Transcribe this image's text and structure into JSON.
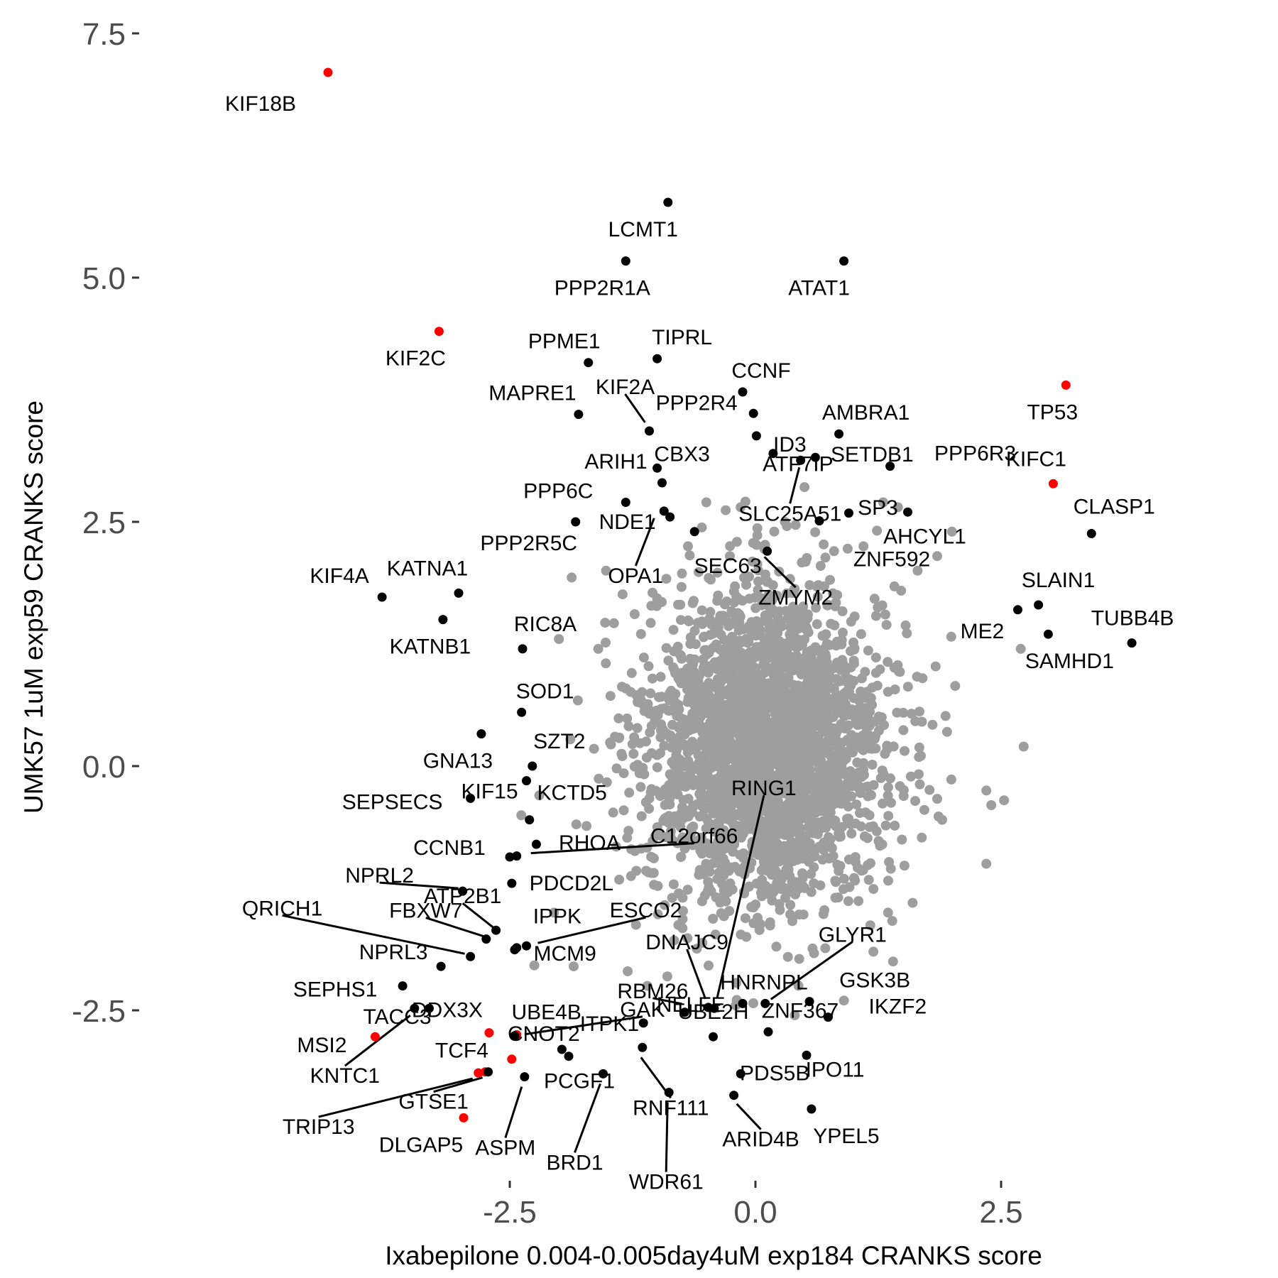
{
  "chart_data": {
    "type": "scatter",
    "xlabel": "Ixabepilone 0.004-0.005day4uM exp184 CRANKS score",
    "ylabel": "UMK57 1uM exp59 CRANKS score",
    "xlim": [
      -4.6,
      4.2
    ],
    "ylim": [
      -4.15,
      7.85
    ],
    "x_ticks": [
      -2.5,
      0.0,
      2.5
    ],
    "x_tick_labels": [
      "-2.5",
      "0.0",
      "2.5"
    ],
    "y_ticks": [
      -2.5,
      0.0,
      2.5,
      5.0,
      7.5
    ],
    "y_tick_labels": [
      "-2.5",
      "0.0",
      "2.5",
      "5.0",
      "7.5"
    ],
    "grid": false,
    "colors": {
      "background": "#9e9e9e",
      "highlight": "#000000",
      "special": "#ff0000"
    },
    "background_cloud": {
      "color": "#9e9e9e",
      "center": [
        0.1,
        0.2
      ],
      "approx_sd": [
        0.6,
        0.8
      ],
      "outliers": [
        [
          -1.52,
          2.0
        ],
        [
          -1.87,
          1.93
        ],
        [
          -2.0,
          1.3
        ],
        [
          -1.6,
          1.2
        ],
        [
          -1.3,
          -2.1
        ],
        [
          1.3,
          2.7
        ],
        [
          1.45,
          2.65
        ],
        [
          2.0,
          2.4
        ],
        [
          1.85,
          2.15
        ],
        [
          1.65,
          2.0
        ],
        [
          2.7,
          1.2
        ],
        [
          2.73,
          0.2
        ],
        [
          2.53,
          -0.35
        ],
        [
          2.35,
          -0.25
        ],
        [
          2.4,
          -0.4
        ],
        [
          2.35,
          -1.0
        ],
        [
          1.6,
          -1.4
        ],
        [
          1.35,
          -1.5
        ],
        [
          1.2,
          -1.9
        ],
        [
          -0.5,
          2.7
        ],
        [
          -0.15,
          2.65
        ],
        [
          0.3,
          2.5
        ],
        [
          0.8,
          2.2
        ],
        [
          1.1,
          2.25
        ],
        [
          -2.2,
          -0.3
        ],
        [
          -2.05,
          -1.5
        ],
        [
          -1.85,
          -2.05
        ],
        [
          -1.1,
          -2.25
        ],
        [
          -0.2,
          -2.45
        ],
        [
          0.4,
          -2.55
        ],
        [
          0.9,
          -2.4
        ],
        [
          1.4,
          -2.0
        ],
        [
          1.9,
          -0.55
        ],
        [
          1.95,
          0.35
        ],
        [
          1.7,
          0.9
        ]
      ]
    },
    "genes": [
      {
        "name": "KIF18B",
        "x": -4.35,
        "y": 7.1,
        "color": "red"
      },
      {
        "name": "LCMT1",
        "x": -0.89,
        "y": 5.77,
        "color": "black"
      },
      {
        "name": "PPP2R1A",
        "x": -1.32,
        "y": 5.17,
        "color": "black"
      },
      {
        "name": "ATAT1",
        "x": 0.9,
        "y": 5.17,
        "color": "black"
      },
      {
        "name": "KIF2C",
        "x": -3.22,
        "y": 4.45,
        "color": "red"
      },
      {
        "name": "TIPRL",
        "x": -1.0,
        "y": 4.17,
        "color": "black"
      },
      {
        "name": "PPME1",
        "x": -1.7,
        "y": 4.13,
        "color": "black"
      },
      {
        "name": "CCNF",
        "x": -0.13,
        "y": 3.83,
        "color": "black"
      },
      {
        "name": "TP53",
        "x": 3.16,
        "y": 3.9,
        "color": "red"
      },
      {
        "name": "MAPRE1",
        "x": -1.8,
        "y": 3.6,
        "color": "black"
      },
      {
        "name": "PPP2R4",
        "x": -0.02,
        "y": 3.61,
        "color": "black"
      },
      {
        "name": "KIF2A",
        "x": -1.08,
        "y": 3.43,
        "color": "black"
      },
      {
        "name": "ID3",
        "x": 0.01,
        "y": 3.38,
        "color": "black"
      },
      {
        "name": "AMBRA1",
        "x": 0.85,
        "y": 3.4,
        "color": "black"
      },
      {
        "name": "CBX3",
        "x": -1.0,
        "y": 3.05,
        "color": "black"
      },
      {
        "name": "ATF7IP",
        "x": 0.18,
        "y": 3.2,
        "color": "black"
      },
      {
        "name": "SETDB1",
        "x": 0.61,
        "y": 3.16,
        "color": "black"
      },
      {
        "name": "PPP6R3",
        "x": 1.37,
        "y": 3.07,
        "color": "black"
      },
      {
        "name": "KIFC1",
        "x": 3.03,
        "y": 2.89,
        "color": "red"
      },
      {
        "name": "ARIH1",
        "x": -0.95,
        "y": 2.9,
        "color": "black"
      },
      {
        "name": "SLC25A51",
        "x": 0.46,
        "y": 3.13,
        "color": "black"
      },
      {
        "name": "SP3",
        "x": 1.55,
        "y": 2.6,
        "color": "black"
      },
      {
        "name": "CLASP1",
        "x": 3.42,
        "y": 2.38,
        "color": "black"
      },
      {
        "name": "PPP6C",
        "x": -1.32,
        "y": 2.7,
        "color": "black"
      },
      {
        "name": "NDE1",
        "x": -0.87,
        "y": 2.55,
        "color": "black"
      },
      {
        "name": "PPP2R5C",
        "x": -1.83,
        "y": 2.5,
        "color": "black"
      },
      {
        "name": "ZNF592",
        "x": 0.65,
        "y": 2.51,
        "color": "black"
      },
      {
        "name": "OPA1",
        "x": -0.93,
        "y": 2.61,
        "color": "black"
      },
      {
        "name": "SEC63",
        "x": -0.62,
        "y": 2.4,
        "color": "black"
      },
      {
        "name": "AHCYL1",
        "x": 0.95,
        "y": 2.59,
        "color": "black"
      },
      {
        "name": "ZMYM2",
        "x": 0.12,
        "y": 2.2,
        "color": "black"
      },
      {
        "name": "KIF4A",
        "x": -3.8,
        "y": 1.73,
        "color": "black"
      },
      {
        "name": "KATNA1",
        "x": -3.02,
        "y": 1.77,
        "color": "black"
      },
      {
        "name": "KATNB1",
        "x": -3.18,
        "y": 1.5,
        "color": "black"
      },
      {
        "name": "SLAIN1",
        "x": 2.88,
        "y": 1.65,
        "color": "black"
      },
      {
        "name": "ME2",
        "x": 2.67,
        "y": 1.6,
        "color": "black"
      },
      {
        "name": "SAMHD1",
        "x": 2.98,
        "y": 1.35,
        "color": "black"
      },
      {
        "name": "TUBB4B",
        "x": 3.83,
        "y": 1.26,
        "color": "black"
      },
      {
        "name": "RIC8A",
        "x": -2.37,
        "y": 1.2,
        "color": "black"
      },
      {
        "name": "SOD1",
        "x": -2.38,
        "y": 0.55,
        "color": "black"
      },
      {
        "name": "GNA13",
        "x": -2.79,
        "y": 0.33,
        "color": "black"
      },
      {
        "name": "SZT2",
        "x": -2.27,
        "y": 0.0,
        "color": "black"
      },
      {
        "name": "SEPSECS",
        "x": -2.9,
        "y": -0.33,
        "color": "black"
      },
      {
        "name": "KIF15",
        "x": -2.33,
        "y": -0.15,
        "color": "black"
      },
      {
        "name": "KCTD5",
        "x": -2.3,
        "y": -0.55,
        "color": "black"
      },
      {
        "name": "RHOA",
        "x": -2.23,
        "y": -0.8,
        "color": "black"
      },
      {
        "name": "C12orf66",
        "x": -2.43,
        "y": -0.92,
        "color": "black"
      },
      {
        "name": "CCNB1",
        "x": -2.5,
        "y": -0.93,
        "color": "black"
      },
      {
        "name": "PDCD2L",
        "x": -2.48,
        "y": -1.2,
        "color": "black"
      },
      {
        "name": "NPRL2",
        "x": -2.98,
        "y": -1.28,
        "color": "black"
      },
      {
        "name": "QRICH1",
        "x": -2.9,
        "y": -1.95,
        "color": "black"
      },
      {
        "name": "FBXW7",
        "x": -2.74,
        "y": -1.77,
        "color": "black"
      },
      {
        "name": "ATP2B1",
        "x": -2.64,
        "y": -1.68,
        "color": "black"
      },
      {
        "name": "IPPK",
        "x": -2.45,
        "y": -1.88,
        "color": "black"
      },
      {
        "name": "ESCO2",
        "x": -2.33,
        "y": -1.84,
        "color": "black"
      },
      {
        "name": "MCM9",
        "x": -2.43,
        "y": -1.86,
        "color": "black"
      },
      {
        "name": "NPRL3",
        "x": -3.2,
        "y": -2.05,
        "color": "black"
      },
      {
        "name": "SEPHS1",
        "x": -3.59,
        "y": -2.25,
        "color": "black"
      },
      {
        "name": "DDX3X",
        "x": -2.71,
        "y": -2.73,
        "color": "red"
      },
      {
        "name": "UBE4B",
        "x": -2.43,
        "y": -2.75,
        "color": "red"
      },
      {
        "name": "GAK",
        "x": -2.45,
        "y": -2.76,
        "color": "black"
      },
      {
        "name": "MSI2",
        "x": -3.87,
        "y": -2.77,
        "color": "red"
      },
      {
        "name": "TACC3",
        "x": -3.32,
        "y": -2.48,
        "color": "black"
      },
      {
        "name": "KNTC1",
        "x": -3.47,
        "y": -2.48,
        "color": "black"
      },
      {
        "name": "TCF4",
        "x": -2.75,
        "y": -3.13,
        "color": "red"
      },
      {
        "name": "CNOT2",
        "x": -2.48,
        "y": -3.0,
        "color": "red"
      },
      {
        "name": "GTSE1",
        "x": -2.72,
        "y": -3.13,
        "color": "black"
      },
      {
        "name": "TRIP13",
        "x": -2.82,
        "y": -3.14,
        "color": "red"
      },
      {
        "name": "ASPM",
        "x": -2.35,
        "y": -3.18,
        "color": "black"
      },
      {
        "name": "DLGAP5",
        "x": -2.97,
        "y": -3.6,
        "color": "red"
      },
      {
        "name": "ITPK1",
        "x": -1.97,
        "y": -2.9,
        "color": "black"
      },
      {
        "name": "PCGF1",
        "x": -1.9,
        "y": -2.97,
        "color": "black"
      },
      {
        "name": "BRD1",
        "x": -1.55,
        "y": -3.15,
        "color": "black"
      },
      {
        "name": "RNF111",
        "x": -1.15,
        "y": -2.88,
        "color": "black"
      },
      {
        "name": "NELFE",
        "x": -1.14,
        "y": -2.63,
        "color": "black"
      },
      {
        "name": "WDR61",
        "x": -0.88,
        "y": -3.34,
        "color": "black"
      },
      {
        "name": "RBM26",
        "x": -0.72,
        "y": -2.52,
        "color": "black"
      },
      {
        "name": "DNAJC9",
        "x": -0.48,
        "y": -2.47,
        "color": "black"
      },
      {
        "name": "RING1",
        "x": -0.42,
        "y": -2.48,
        "color": "black"
      },
      {
        "name": "UBE2H",
        "x": -0.43,
        "y": -2.77,
        "color": "black"
      },
      {
        "name": "HNRNPL",
        "x": -0.13,
        "y": -2.43,
        "color": "black"
      },
      {
        "name": "GLYR1",
        "x": 0.1,
        "y": -2.43,
        "color": "black"
      },
      {
        "name": "ZNF367",
        "x": 0.13,
        "y": -2.72,
        "color": "black"
      },
      {
        "name": "PDS5B",
        "x": -0.15,
        "y": -3.15,
        "color": "black"
      },
      {
        "name": "ARID4B",
        "x": -0.22,
        "y": -3.37,
        "color": "black"
      },
      {
        "name": "GSK3B",
        "x": 0.55,
        "y": -2.41,
        "color": "black"
      },
      {
        "name": "IKZF2",
        "x": 0.74,
        "y": -2.57,
        "color": "black"
      },
      {
        "name": "IPO11",
        "x": 0.52,
        "y": -2.96,
        "color": "black"
      },
      {
        "name": "YPEL5",
        "x": 0.57,
        "y": -3.51,
        "color": "black"
      }
    ]
  }
}
